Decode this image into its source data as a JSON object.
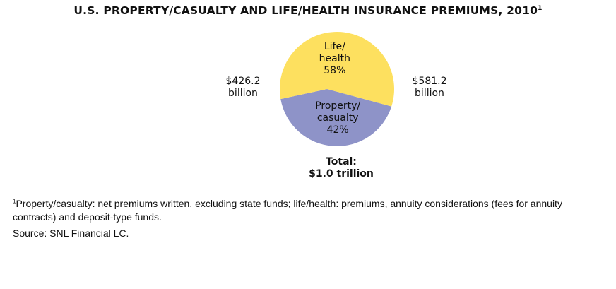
{
  "chart_data": {
    "type": "pie",
    "title": "U.S. PROPERTY/CASUALTY AND LIFE/HEALTH INSURANCE PREMIUMS, 2010",
    "title_footnote_marker": "1",
    "slices": [
      {
        "label_line1": "Property/",
        "label_line2": "casualty",
        "percent_label": "42%",
        "value": 426.2,
        "amount_line1": "$426.2",
        "amount_line2": "billion",
        "percent": 42,
        "color": "#8e93c8"
      },
      {
        "label_line1": "Life/",
        "label_line2": "health",
        "percent_label": "58%",
        "value": 581.2,
        "amount_line1": "$581.2",
        "amount_line2": "billion",
        "percent": 58,
        "color": "#fde05f"
      }
    ],
    "total_label": "Total:",
    "total_value": "$1.0 trillion"
  },
  "footnotes": {
    "marker": "1",
    "note": "Property/casualty: net premiums written, excluding state funds; life/health: premiums, annuity considerations (fees for annuity contracts) and deposit-type funds.",
    "source": "Source: SNL Financial LC."
  }
}
